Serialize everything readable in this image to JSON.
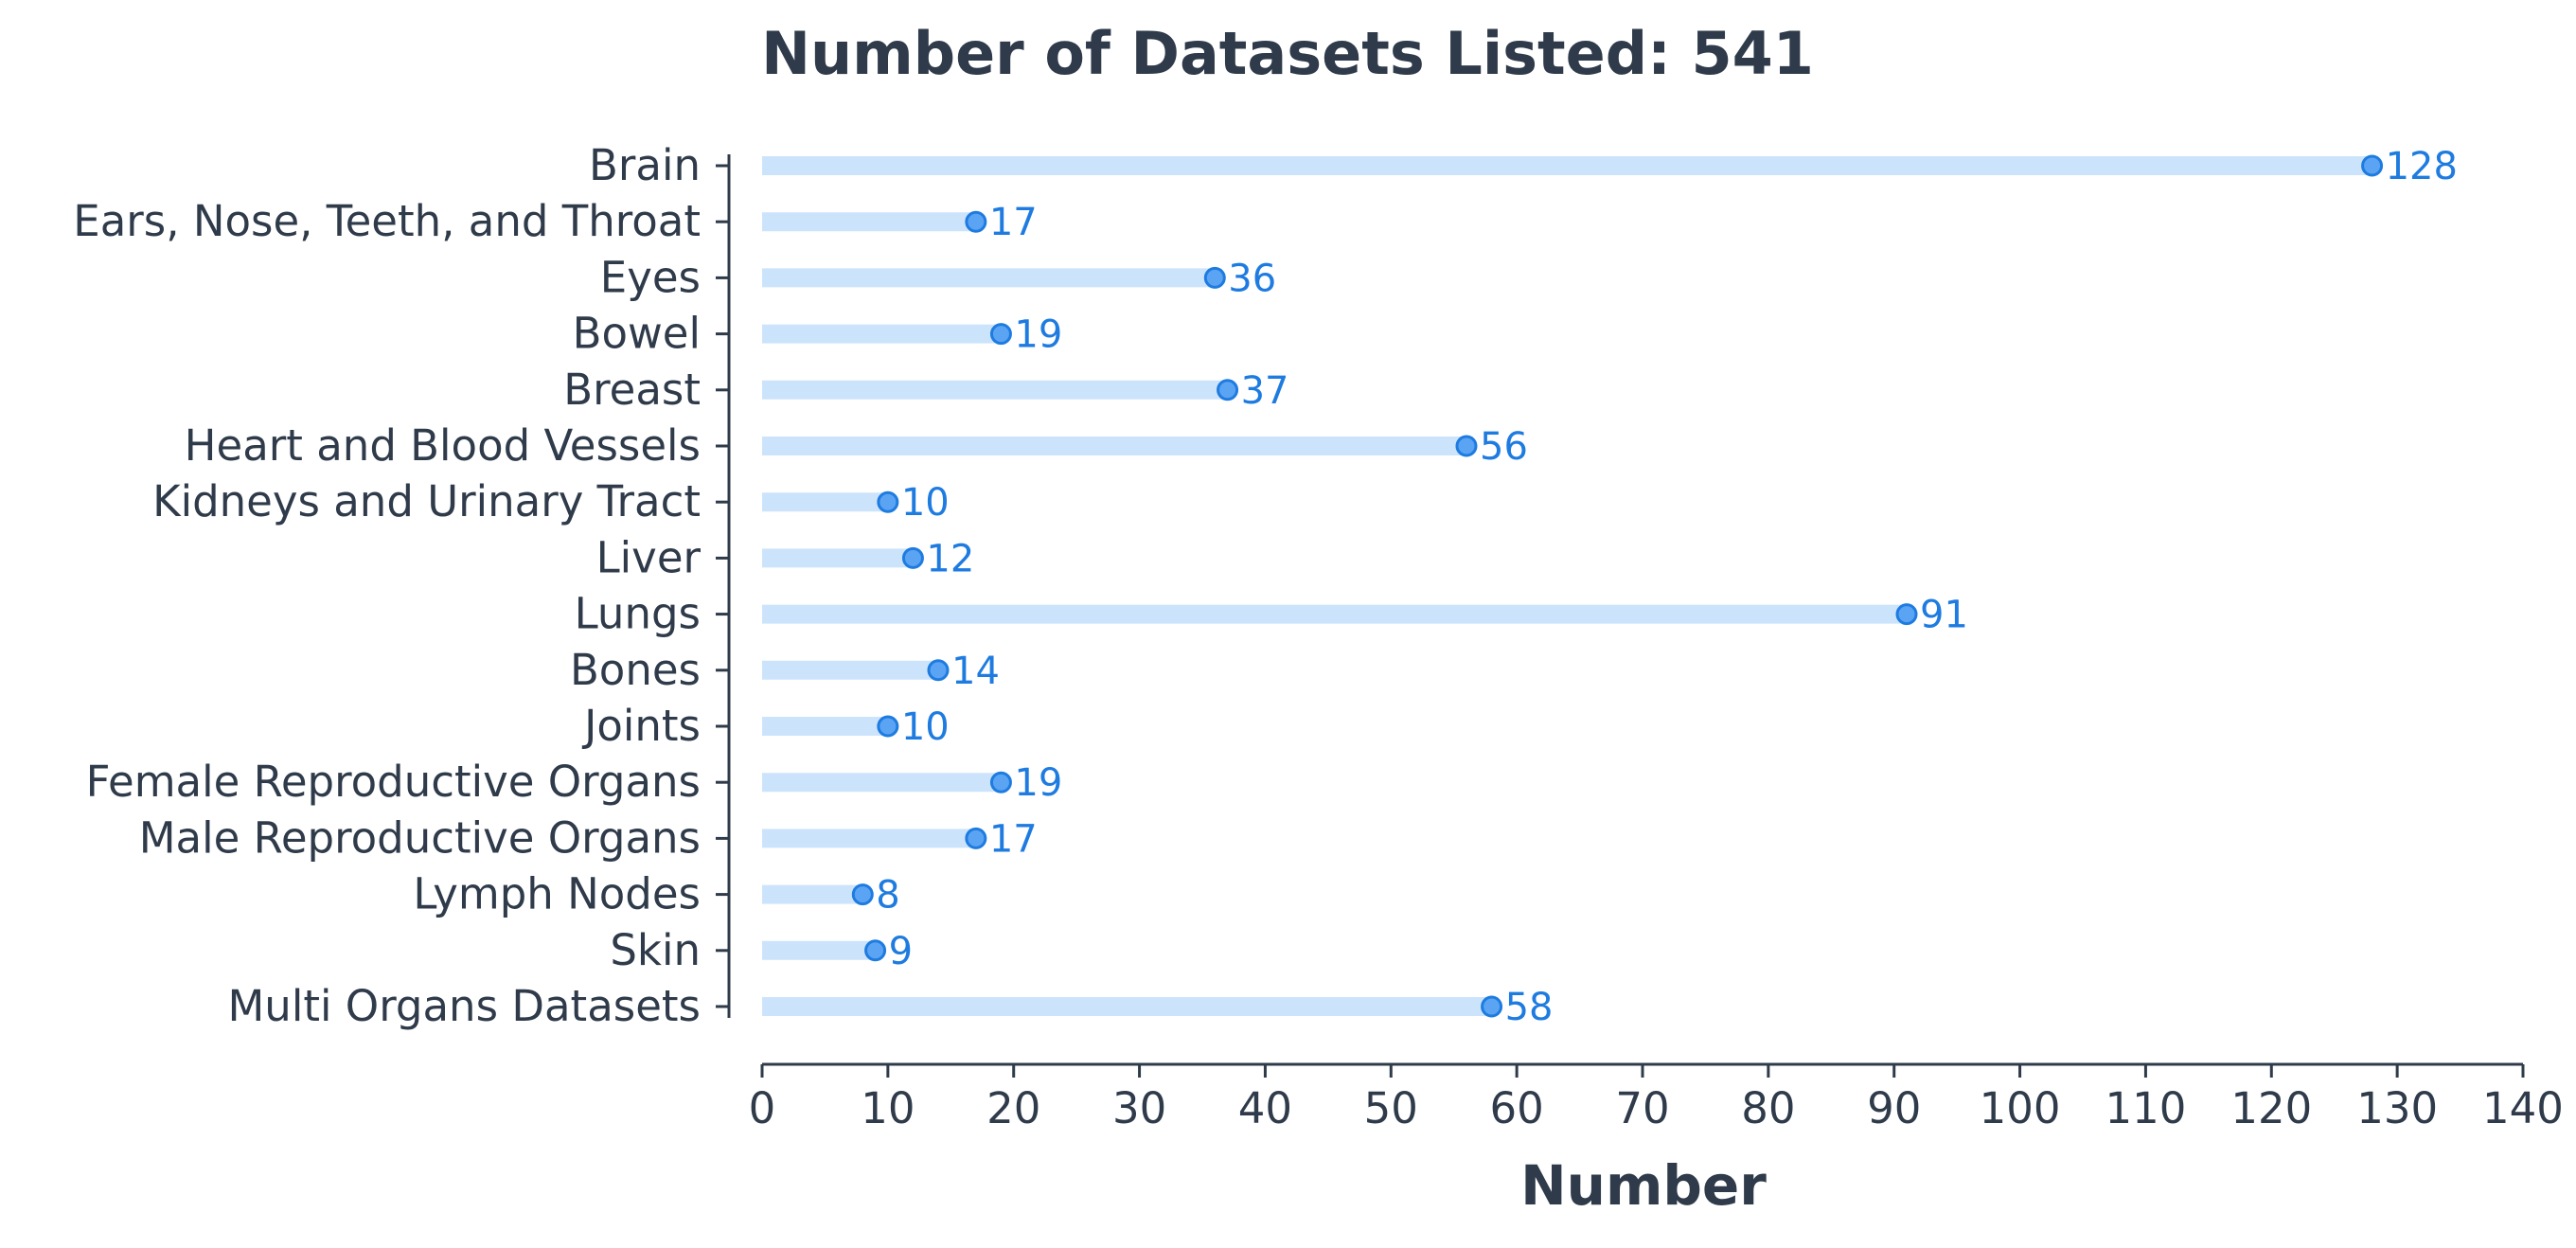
{
  "chart_data": {
    "type": "bar",
    "orientation": "horizontal",
    "style": "lollipop",
    "title": "Number of Datasets Listed: 541",
    "xlabel": "Number",
    "ylabel": "",
    "xlim": [
      0,
      140
    ],
    "x_ticks": [
      0,
      10,
      20,
      30,
      40,
      50,
      60,
      70,
      80,
      90,
      100,
      110,
      120,
      130,
      140
    ],
    "grid": false,
    "legend": "none",
    "categories": [
      "Brain",
      "Ears, Nose, Teeth, and Throat",
      "Eyes",
      "Bowel",
      "Breast",
      "Heart and Blood Vessels",
      "Kidneys and Urinary Tract",
      "Liver",
      "Lungs",
      "Bones",
      "Joints",
      "Female Reproductive Organs",
      "Male Reproductive Organs",
      "Lymph Nodes",
      "Skin",
      "Multi Organs Datasets"
    ],
    "values": [
      128,
      17,
      36,
      19,
      37,
      56,
      10,
      12,
      91,
      14,
      10,
      19,
      17,
      8,
      9,
      58
    ],
    "colors": {
      "stem": "#cce4fb",
      "marker": "#5aa4f3",
      "marker_edge": "#1e7be0",
      "value_text": "#1e7be0",
      "axis": "#2f3b4a",
      "text": "#2f3b4a"
    }
  }
}
